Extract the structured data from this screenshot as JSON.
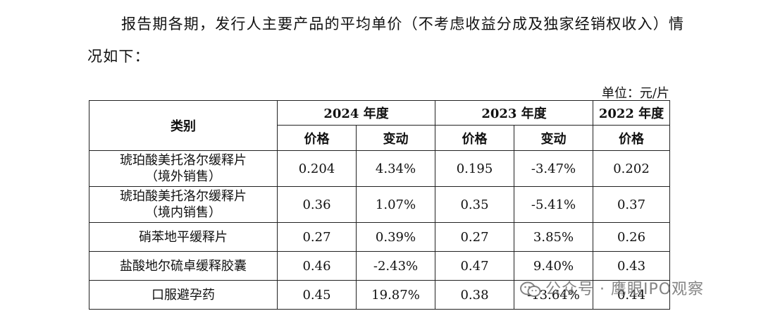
{
  "intro": {
    "line1": "报告期各期，发行人主要产品的平均单价（不考虑收益分成及独家经销权收入）情",
    "line2": "况如下："
  },
  "unit_label": "单位：元/片",
  "table": {
    "category_header": "类别",
    "years": [
      "2024 年度",
      "2023 年度",
      "2022 年度"
    ],
    "price_label": "价格",
    "change_label": "变动",
    "rows": [
      {
        "name": [
          "琥珀酸美托洛尔缓释片",
          "（境外销售）"
        ],
        "p2024": "0.204",
        "c2024": "4.34%",
        "p2023": "0.195",
        "c2023": "-3.47%",
        "p2022": "0.202"
      },
      {
        "name": [
          "琥珀酸美托洛尔缓释片",
          "（境内销售）"
        ],
        "p2024": "0.36",
        "c2024": "1.07%",
        "p2023": "0.35",
        "c2023": "-5.41%",
        "p2022": "0.37"
      },
      {
        "name": [
          "硝苯地平缓释片"
        ],
        "p2024": "0.27",
        "c2024": "0.39%",
        "p2023": "0.27",
        "c2023": "3.85%",
        "p2022": "0.26"
      },
      {
        "name": [
          "盐酸地尔硫卓缓释胶囊"
        ],
        "p2024": "0.46",
        "c2024": "-2.43%",
        "p2023": "0.47",
        "c2023": "9.40%",
        "p2022": "0.43"
      },
      {
        "name": [
          "口服避孕药"
        ],
        "p2024": "0.45",
        "c2024": "19.87%",
        "p2023": "0.38",
        "c2023": "-13.64%",
        "p2022": "0.44"
      }
    ]
  },
  "watermark": {
    "icon": "wechat-official-account-icon",
    "text": "公众号 · 鹰眼IPO观察"
  }
}
